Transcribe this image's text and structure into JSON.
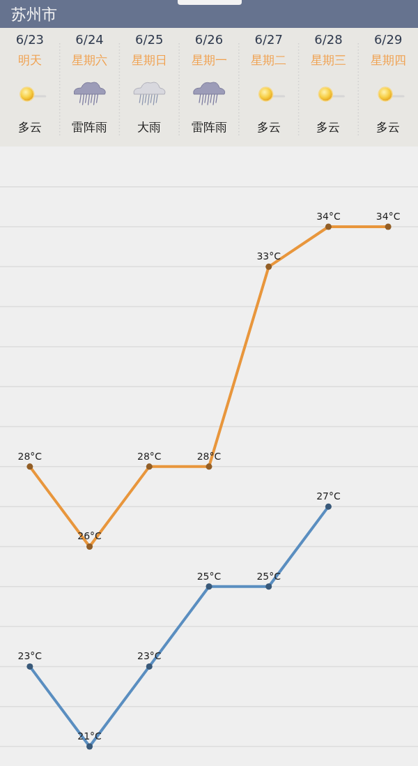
{
  "chart_data": {
    "type": "line",
    "title": "苏州市",
    "categories": [
      "6/23\n明天",
      "6/24\n星期六",
      "6/25\n星期日",
      "6/26\n星期一",
      "6/27\n星期二",
      "6/28\n星期三",
      "6/29\n星期四"
    ],
    "annotations": [
      "多云",
      "雷阵雨",
      "大雨",
      "雷阵雨",
      "多云",
      "多云",
      "多云"
    ],
    "series": [
      {
        "color": "#e8963c",
        "values": [
          28,
          26,
          28,
          28,
          33,
          34,
          34
        ],
        "value_labels": [
          "28°C",
          "26°C",
          "28°C",
          "28°C",
          "33°C",
          "34°C",
          "34°C"
        ]
      },
      {
        "color": "#5a8ec0",
        "values": [
          23,
          21,
          23,
          25,
          25,
          27,
          null
        ],
        "value_labels": [
          "23°C",
          "21°C",
          "23°C",
          "25°C",
          "25°C",
          "27°C",
          null
        ]
      }
    ],
    "yticks": [
      {
        "value": 21,
        "label": null
      },
      {
        "value": 22,
        "label": null
      },
      {
        "value": 23,
        "label": null
      },
      {
        "value": 24,
        "label": null
      },
      {
        "value": 25,
        "label": null
      },
      {
        "value": 26,
        "label": null
      },
      {
        "value": 27,
        "label": null
      },
      {
        "value": 28,
        "label": null
      },
      {
        "value": 29,
        "label": null
      },
      {
        "value": 30,
        "label": null
      },
      {
        "value": 31,
        "label": null
      },
      {
        "value": 32,
        "label": null
      },
      {
        "value": 33,
        "label": null
      },
      {
        "value": 34,
        "label": null
      },
      {
        "value": 35,
        "label": null
      }
    ],
    "grid": "y",
    "tick_labels": "x",
    "marker": "circle"
  }
}
